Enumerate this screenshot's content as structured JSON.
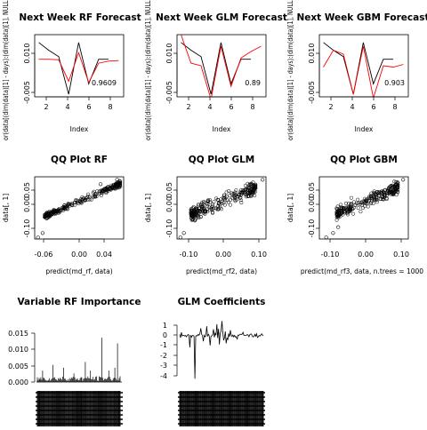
{
  "panels": {
    "rf_forecast": {
      "title": "Next Week RF Forecast",
      "xlabel": "Index",
      "ylabel": "or(data[(dim(data)[1] - days):(dim(data)[1], NULL)",
      "r2_label": "0.9609",
      "xticks": [
        "2",
        "4",
        "6",
        "8"
      ],
      "yticks": [
        "-0.005",
        "0.010"
      ]
    },
    "glm_forecast": {
      "title": "Next Week GLM Forecast",
      "xlabel": "Index",
      "ylabel": "or(data[(dim(data)[1] - days):(dim(data)[1], NULL)",
      "r2_label": "0.89",
      "xticks": [
        "2",
        "4",
        "6",
        "8"
      ],
      "yticks": [
        "-0.005",
        "0.010"
      ]
    },
    "gbm_forecast": {
      "title": "Next Week GBM Forecast",
      "xlabel": "Index",
      "ylabel": "or(data[(dim(data)[1] - days):(dim(data)[1], NULL)",
      "r2_label": "0.903",
      "xticks": [
        "2",
        "4",
        "6",
        "8"
      ],
      "yticks": [
        "-0.005",
        "0.010"
      ]
    },
    "qq_rf": {
      "title": "QQ Plot RF",
      "xlabel": "predict(md_rf, data)",
      "ylabel": "data[, 1]",
      "xticks": [
        "-0.06",
        "0.00",
        "0.04"
      ],
      "yticks": [
        "-0.10",
        "0.00",
        "0.05"
      ]
    },
    "qq_glm": {
      "title": "QQ Plot GLM",
      "xlabel": "predict(md_rf2, data)",
      "ylabel": "data[, 1]",
      "xticks": [
        "-0.10",
        "0.00",
        "0.10"
      ],
      "yticks": [
        "-0.10",
        "0.00",
        "0.05"
      ]
    },
    "qq_gbm": {
      "title": "QQ Plot GBM",
      "xlabel": "predict(md_rf3, data, n.trees = 1000",
      "ylabel": "data[, 1]",
      "xticks": [
        "-0.10",
        "0.00",
        "0.10"
      ],
      "yticks": [
        "-0.10",
        "0.00",
        "0.05"
      ]
    },
    "rf_importance": {
      "title": "Variable RF Importance",
      "yticks": [
        "0.000",
        "0.005",
        "0.010",
        "0.015"
      ]
    },
    "glm_coefficients": {
      "title": "GLM Coefficients",
      "yticks": [
        "1",
        "0",
        "-1",
        "-2",
        "-3",
        "-4"
      ]
    }
  },
  "colors": {
    "actual": "#000000",
    "forecast": "#ff0000"
  },
  "chart_data": [
    {
      "type": "line",
      "title": "Next Week RF Forecast",
      "xlabel": "Index",
      "ylabel": "or(data[(dim(data)[1] - days):(dim(data)[1], NULL)",
      "x": [
        1,
        2,
        3,
        4,
        5,
        6,
        7,
        8,
        9
      ],
      "xlim": [
        0.6,
        9.5
      ],
      "ylim": [
        -0.006,
        0.018
      ],
      "series": [
        {
          "values": [
            0.015,
            0.012,
            0.0095,
            -0.005,
            0.015,
            -0.001,
            0.0085,
            0.0085,
            null
          ]
        },
        {
          "values": [
            0.0085,
            0.0085,
            0.0083,
            0.0,
            0.011,
            -0.0005,
            0.007,
            0.0078,
            0.008
          ]
        }
      ],
      "annotation": "0.9609"
    },
    {
      "type": "line",
      "title": "Next Week GLM Forecast",
      "xlabel": "Index",
      "ylabel": "or(data[(dim(data)[1] - days):(dim(data)[1], NULL)",
      "x": [
        1,
        2,
        3,
        4,
        5,
        6,
        7,
        8,
        9
      ],
      "xlim": [
        0.6,
        9.5
      ],
      "ylim": [
        -0.006,
        0.018
      ],
      "series": [
        {
          "values": [
            0.015,
            0.012,
            0.0095,
            -0.005,
            0.015,
            -0.001,
            0.0085,
            0.0085,
            null
          ]
        },
        {
          "values": [
            0.018,
            0.007,
            0.006,
            -0.007,
            0.0135,
            -0.002,
            0.009,
            0.0115,
            0.0135
          ]
        }
      ],
      "annotation": "0.89"
    },
    {
      "type": "line",
      "title": "Next Week GBM Forecast",
      "xlabel": "Index",
      "ylabel": "or(data[(dim(data)[1] - days):(dim(data)[1], NULL)",
      "x": [
        1,
        2,
        3,
        4,
        5,
        6,
        7,
        8,
        9
      ],
      "xlim": [
        0.6,
        9.5
      ],
      "ylim": [
        -0.006,
        0.018
      ],
      "series": [
        {
          "values": [
            0.015,
            0.012,
            0.0095,
            -0.005,
            0.015,
            -0.001,
            0.0085,
            0.0085,
            null
          ]
        },
        {
          "values": [
            0.0055,
            0.012,
            0.0105,
            -0.005,
            0.0135,
            -0.0065,
            0.006,
            0.0055,
            0.0065
          ]
        }
      ],
      "annotation": "0.903"
    },
    {
      "type": "scatter",
      "title": "QQ Plot RF",
      "xlabel": "predict(md_rf, data)",
      "ylabel": "data[, 1]",
      "xlim": [
        -0.07,
        0.065
      ],
      "ylim": [
        -0.13,
        0.08
      ],
      "x_range": [
        -0.055,
        0.06
      ],
      "slope": 1.9,
      "spread": 0.005,
      "outliers": [
        [
          -0.065,
          -0.125
        ],
        [
          -0.058,
          -0.11
        ],
        [
          0.055,
          0.07
        ],
        [
          0.059,
          0.058
        ],
        [
          0.048,
          0.045
        ],
        [
          0.03,
          0.055
        ]
      ]
    },
    {
      "type": "scatter",
      "title": "QQ Plot GLM",
      "xlabel": "predict(md_rf2, data)",
      "ylabel": "data[, 1]",
      "xlim": [
        -0.14,
        0.12
      ],
      "ylim": [
        -0.13,
        0.08
      ],
      "x_range": [
        -0.1,
        0.09
      ],
      "slope": 0.95,
      "spread": 0.012,
      "outliers": [
        [
          -0.13,
          -0.125
        ],
        [
          -0.12,
          -0.11
        ],
        [
          0.11,
          0.07
        ],
        [
          0.085,
          0.05
        ],
        [
          0.075,
          0.055
        ]
      ]
    },
    {
      "type": "scatter",
      "title": "QQ Plot GBM",
      "xlabel": "predict(md_rf3, data, n.trees = 1000",
      "ylabel": "data[, 1]",
      "xlim": [
        -0.14,
        0.12
      ],
      "ylim": [
        -0.13,
        0.08
      ],
      "x_range": [
        -0.09,
        0.09
      ],
      "slope": 0.95,
      "spread": 0.01,
      "outliers": [
        [
          -0.12,
          -0.125
        ],
        [
          -0.1,
          -0.11
        ],
        [
          0.105,
          0.07
        ],
        [
          0.085,
          0.052
        ],
        [
          -0.085,
          -0.09
        ]
      ]
    },
    {
      "type": "bar",
      "title": "Variable RF Importance",
      "ylim": [
        0,
        0.018
      ],
      "n_bars": 96,
      "base_level": 0.0012,
      "peaks": [
        [
          6,
          0.004
        ],
        [
          18,
          0.006
        ],
        [
          30,
          0.005
        ],
        [
          42,
          0.003
        ],
        [
          55,
          0.007
        ],
        [
          61,
          0.004
        ],
        [
          74,
          0.0155
        ],
        [
          82,
          0.004
        ],
        [
          89,
          0.005
        ],
        [
          92,
          0.0135
        ]
      ]
    },
    {
      "type": "line",
      "title": "GLM Coefficients",
      "ylim": [
        -4.5,
        1.5
      ],
      "n_points": 100,
      "spikes": [
        [
          12,
          -1.2
        ],
        [
          18,
          -4.3
        ],
        [
          25,
          0.7
        ],
        [
          28,
          -0.6
        ],
        [
          32,
          0.9
        ],
        [
          36,
          -1.0
        ],
        [
          40,
          0.6
        ],
        [
          44,
          1.1
        ],
        [
          47,
          -0.9
        ],
        [
          50,
          1.4
        ],
        [
          55,
          -0.8
        ],
        [
          60,
          0.5
        ],
        [
          68,
          -0.4
        ],
        [
          75,
          0.3
        ]
      ]
    }
  ]
}
